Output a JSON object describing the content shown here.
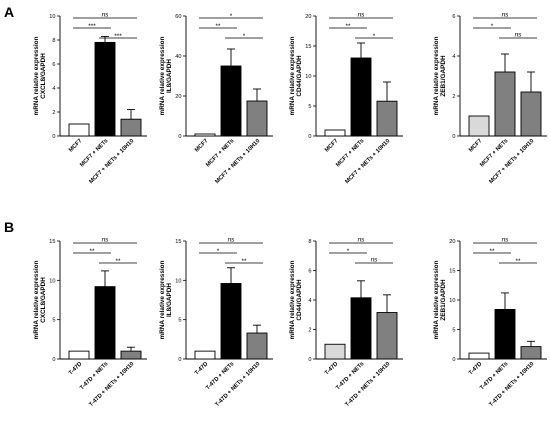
{
  "panels": [
    {
      "label": "A"
    },
    {
      "label": "B"
    }
  ],
  "chart_data": [
    {
      "type": "bar",
      "panel": "A",
      "categories": [
        "MCF7",
        "MCF7 + NETs",
        "MCF7 + NETs + 10H10"
      ],
      "values": [
        1,
        7.8,
        1.4
      ],
      "errors": [
        0,
        0.5,
        0.8
      ],
      "ylabel": [
        "mRNA relative expression",
        "CXCL8/GAPDH"
      ],
      "ylim": [
        0,
        10
      ],
      "yticks": [
        "0",
        "2",
        "4",
        "6",
        "8",
        "10"
      ],
      "bar_colors": [
        "#ffffff",
        "#000000",
        "#808080"
      ],
      "significance": [
        {
          "from": 0,
          "to": 2,
          "label": "ns"
        },
        {
          "from": 0,
          "to": 1,
          "label": "***"
        },
        {
          "from": 1,
          "to": 2,
          "label": "***"
        }
      ]
    },
    {
      "type": "bar",
      "panel": "A",
      "categories": [
        "MCF7",
        "MCF7 + NETs",
        "MCF7 + NETs + 10H10"
      ],
      "values": [
        1,
        35,
        17.5
      ],
      "errors": [
        0,
        8.5,
        6
      ],
      "ylabel": [
        "mRNA relative expression",
        "IL8/GAPDH"
      ],
      "ylim": [
        0,
        60
      ],
      "yticks": [
        "0",
        "20",
        "40",
        "60"
      ],
      "bar_colors": [
        "#ffffff",
        "#000000",
        "#808080"
      ],
      "significance": [
        {
          "from": 0,
          "to": 2,
          "label": "*"
        },
        {
          "from": 0,
          "to": 1,
          "label": "**"
        },
        {
          "from": 1,
          "to": 2,
          "label": "*"
        }
      ]
    },
    {
      "type": "bar",
      "panel": "A",
      "categories": [
        "MCF7",
        "MCF7 + NETs",
        "MCF7 + NETs + 10H10"
      ],
      "values": [
        1,
        13,
        5.8
      ],
      "errors": [
        0,
        2.5,
        3.2
      ],
      "ylabel": [
        "mRNA relative expression",
        "CD44/GAPDH"
      ],
      "ylim": [
        0,
        20
      ],
      "yticks": [
        "0",
        "5",
        "10",
        "15",
        "20"
      ],
      "bar_colors": [
        "#ffffff",
        "#000000",
        "#808080"
      ],
      "significance": [
        {
          "from": 0,
          "to": 2,
          "label": "ns"
        },
        {
          "from": 0,
          "to": 1,
          "label": "**"
        },
        {
          "from": 1,
          "to": 2,
          "label": "*"
        }
      ]
    },
    {
      "type": "bar",
      "panel": "A",
      "categories": [
        "MCF7",
        "MCF7 + NETs",
        "MCF7 + NETs + 10H10"
      ],
      "values": [
        1,
        3.2,
        2.2
      ],
      "errors": [
        0,
        0.9,
        1.0
      ],
      "ylabel": [
        "mRNA relative expression",
        "ZEB1/GAPDH"
      ],
      "ylim": [
        0,
        6
      ],
      "yticks": [
        "0",
        "2",
        "4",
        "6"
      ],
      "bar_colors": [
        "#d9d9d9",
        "#808080",
        "#808080"
      ],
      "significance": [
        {
          "from": 0,
          "to": 2,
          "label": "ns"
        },
        {
          "from": 0,
          "to": 1,
          "label": "*"
        },
        {
          "from": 1,
          "to": 2,
          "label": "ns"
        }
      ]
    },
    {
      "type": "bar",
      "panel": "B",
      "categories": [
        "T-47D",
        "T-47D + NETs",
        "T-47D + NETs + 10H10"
      ],
      "values": [
        1,
        9.2,
        1.0
      ],
      "errors": [
        0,
        2.0,
        0.5
      ],
      "ylabel": [
        "mRNA relative expression",
        "CXCL8/GAPDH"
      ],
      "ylim": [
        0,
        15
      ],
      "yticks": [
        "0",
        "5",
        "10",
        "15"
      ],
      "bar_colors": [
        "#ffffff",
        "#000000",
        "#808080"
      ],
      "significance": [
        {
          "from": 0,
          "to": 2,
          "label": "ns"
        },
        {
          "from": 0,
          "to": 1,
          "label": "**"
        },
        {
          "from": 1,
          "to": 2,
          "label": "**"
        }
      ]
    },
    {
      "type": "bar",
      "panel": "B",
      "categories": [
        "T-47D",
        "T-47D + NETs",
        "T-47D + NETs + 10H10"
      ],
      "values": [
        1,
        9.6,
        3.3
      ],
      "errors": [
        0,
        2.0,
        1.0
      ],
      "ylabel": [
        "mRNA relative expression",
        "IL8/GAPDH"
      ],
      "ylim": [
        0,
        15
      ],
      "yticks": [
        "0",
        "5",
        "10",
        "15"
      ],
      "bar_colors": [
        "#ffffff",
        "#000000",
        "#808080"
      ],
      "significance": [
        {
          "from": 0,
          "to": 2,
          "label": "ns"
        },
        {
          "from": 0,
          "to": 1,
          "label": "*"
        },
        {
          "from": 1,
          "to": 2,
          "label": "**"
        }
      ]
    },
    {
      "type": "bar",
      "panel": "B",
      "categories": [
        "T-47D",
        "T-47D + NETs",
        "T-47D + NETs + 10H10"
      ],
      "values": [
        1,
        4.15,
        3.15
      ],
      "errors": [
        0,
        1.15,
        1.2
      ],
      "ylabel": [
        "mRNA relative expression",
        "CD44/GAPDH"
      ],
      "ylim": [
        0,
        8
      ],
      "yticks": [
        "0",
        "2",
        "4",
        "6",
        "8"
      ],
      "bar_colors": [
        "#d9d9d9",
        "#000000",
        "#808080"
      ],
      "significance": [
        {
          "from": 0,
          "to": 2,
          "label": "ns"
        },
        {
          "from": 0,
          "to": 1,
          "label": "*"
        },
        {
          "from": 1,
          "to": 2,
          "label": "ns"
        }
      ]
    },
    {
      "type": "bar",
      "panel": "B",
      "categories": [
        "T-47D",
        "T-47D + NETs",
        "T-47D + NETs + 10H10"
      ],
      "values": [
        1,
        8.4,
        2.1
      ],
      "errors": [
        0,
        2.8,
        0.9
      ],
      "ylabel": [
        "mRNA relative expression",
        "ZEB1/GAPDH"
      ],
      "ylim": [
        0,
        20
      ],
      "yticks": [
        "0",
        "5",
        "10",
        "15",
        "20"
      ],
      "bar_colors": [
        "#ffffff",
        "#000000",
        "#808080"
      ],
      "significance": [
        {
          "from": 0,
          "to": 2,
          "label": "ns"
        },
        {
          "from": 0,
          "to": 1,
          "label": "**"
        },
        {
          "from": 1,
          "to": 2,
          "label": "**"
        }
      ]
    }
  ]
}
